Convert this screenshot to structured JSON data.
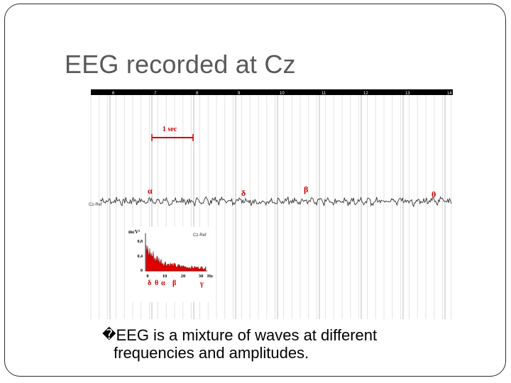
{
  "slide": {
    "title": "EEG recorded at Cz",
    "bullet_mark": "�",
    "bullet_line1": "EEG is a mixture of waves at different",
    "bullet_line2": "frequencies and amplitudes."
  },
  "eeg": {
    "seconds": [
      "6",
      "7",
      "8",
      "9",
      "10",
      "11",
      "12",
      "13",
      "14"
    ],
    "scale_label": "1 sec",
    "channel_label": "Cz-Ref",
    "wave_labels": [
      "α",
      "δ",
      "β",
      "θ"
    ],
    "colors": {
      "accent": "#cc0000",
      "trace": "#333333",
      "grid": "#d9d9d9",
      "bar": "#000000"
    }
  },
  "spectrum": {
    "ylabel": "mcV²",
    "channel_label": "Cz-Ref",
    "yticks": [
      "0,8",
      "0,4",
      "0"
    ],
    "xticks": [
      "0",
      "10",
      "20",
      "30"
    ],
    "xunit": "Hz",
    "band_labels": [
      "δ",
      "θ",
      "α",
      "β",
      "γ"
    ]
  }
}
